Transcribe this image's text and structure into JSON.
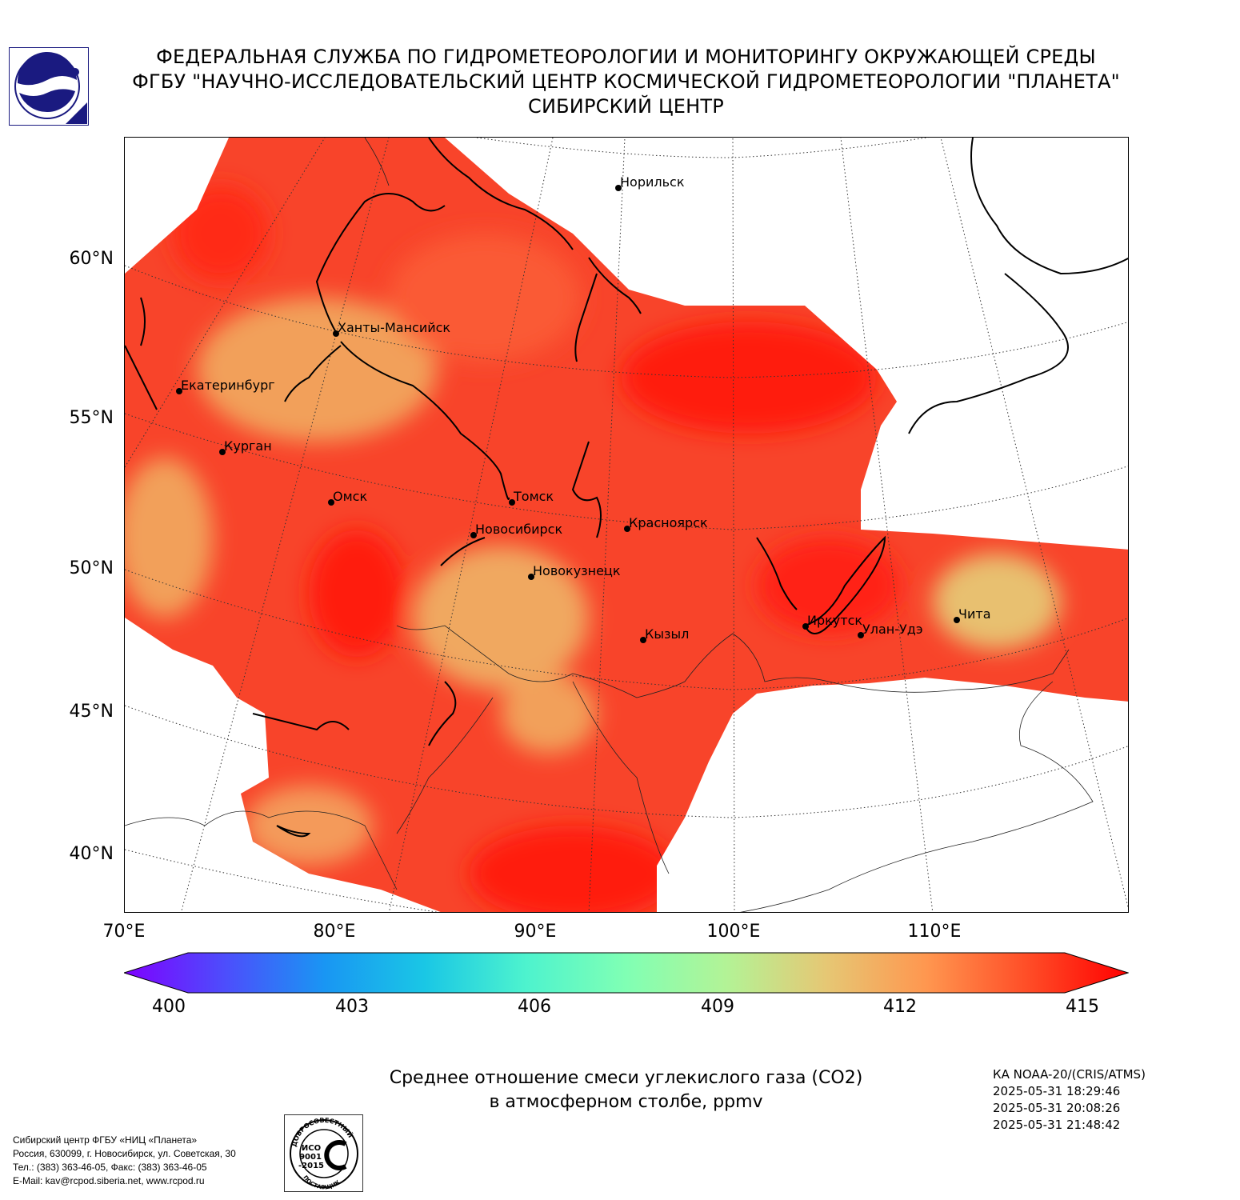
{
  "header": {
    "line1": "ФЕДЕРАЛЬНАЯ СЛУЖБА ПО ГИДРОМЕТЕОРОЛОГИИ И МОНИТОРИНГУ ОКРУЖАЮЩЕЙ СРЕДЫ",
    "line2": "ФГБУ \"НАУЧНО-ИССЛЕДОВАТЕЛЬСКИЙ ЦЕНТР КОСМИЧЕСКОЙ ГИДРОМЕТЕОРОЛОГИИ \"ПЛАНЕТА\"",
    "line3": "СИБИРСКИЙ ЦЕНТР"
  },
  "logo": {
    "icon": "roshydromet-logo-icon",
    "color": "#1a1a80"
  },
  "map": {
    "latitude_labels": [
      "60°N",
      "55°N",
      "50°N",
      "45°N",
      "40°N"
    ],
    "longitude_labels": [
      "70°E",
      "80°E",
      "90°E",
      "100°E",
      "110°E"
    ],
    "cities": [
      {
        "name": "Норильск"
      },
      {
        "name": "Ханты-Мансийск"
      },
      {
        "name": "Екатеринбург"
      },
      {
        "name": "Курган"
      },
      {
        "name": "Омск"
      },
      {
        "name": "Томск"
      },
      {
        "name": "Новосибирск"
      },
      {
        "name": "Красноярск"
      },
      {
        "name": "Новокузнецк"
      },
      {
        "name": "Иркутск"
      },
      {
        "name": "Улан-Удэ"
      },
      {
        "name": "Чита"
      },
      {
        "name": "Кызыл"
      }
    ],
    "field_colors": {
      "high": "#ff1a0a",
      "mid": "#f8442a",
      "low": "#f2a05a",
      "very_low": "#e8c070"
    }
  },
  "colorbar": {
    "ticks": [
      "400",
      "403",
      "406",
      "409",
      "412",
      "415"
    ],
    "min": 400,
    "max": 415,
    "colors": [
      "#7f00ff",
      "#4d4dfc",
      "#1996f3",
      "#1ac7e5",
      "#4df3ce",
      "#80ffb4",
      "#b3f396",
      "#e6c774",
      "#ff964f",
      "#ff4d27",
      "#ff0000"
    ]
  },
  "caption": {
    "line1": "Среднее отношение смеси углекислого газа (CO2)",
    "line2": "в атмосферном столбе, ppmv"
  },
  "satellite": {
    "name": "КА NOAA-20/(CRIS/ATMS)",
    "times": [
      "2025-05-31 18:29:46",
      "2025-05-31 20:08:26",
      "2025-05-31 21:48:42"
    ]
  },
  "contacts": {
    "line1": "Сибирский центр ФГБУ «НИЦ «Планета»",
    "line2": "Россия, 630099, г. Новосибирск, ул. Советская, 30",
    "line3": "Тел.: (383) 363-46-05, Факс: (383) 363-46-05",
    "line4": "E-Mail: kav@rcpod.siberia.net, www.rcpod.ru"
  },
  "stamp": {
    "top_text": "ДОБРОСОВЕСТНЫЙ",
    "iso_line1": "ИСО",
    "iso_line2": "9001",
    "iso_line3": "-2015",
    "bottom_text": "ПОСТАВЩИК"
  }
}
